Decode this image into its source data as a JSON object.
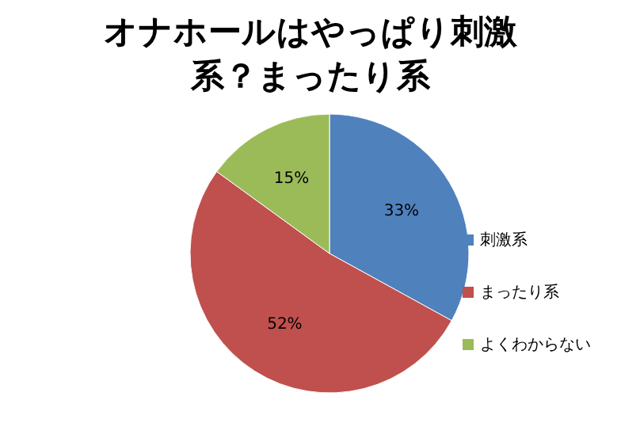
{
  "chart_data": {
    "type": "pie",
    "title": "オナホールはやっぱり刺激系？まったり系",
    "categories": [
      "刺激系",
      "まったり系",
      "よくわからない"
    ],
    "values": [
      33,
      52,
      15
    ],
    "value_labels": [
      "33%",
      "52%",
      "15%"
    ],
    "colors": [
      "#4f81bd",
      "#c0504d",
      "#9bbb59"
    ],
    "legend": "right"
  }
}
